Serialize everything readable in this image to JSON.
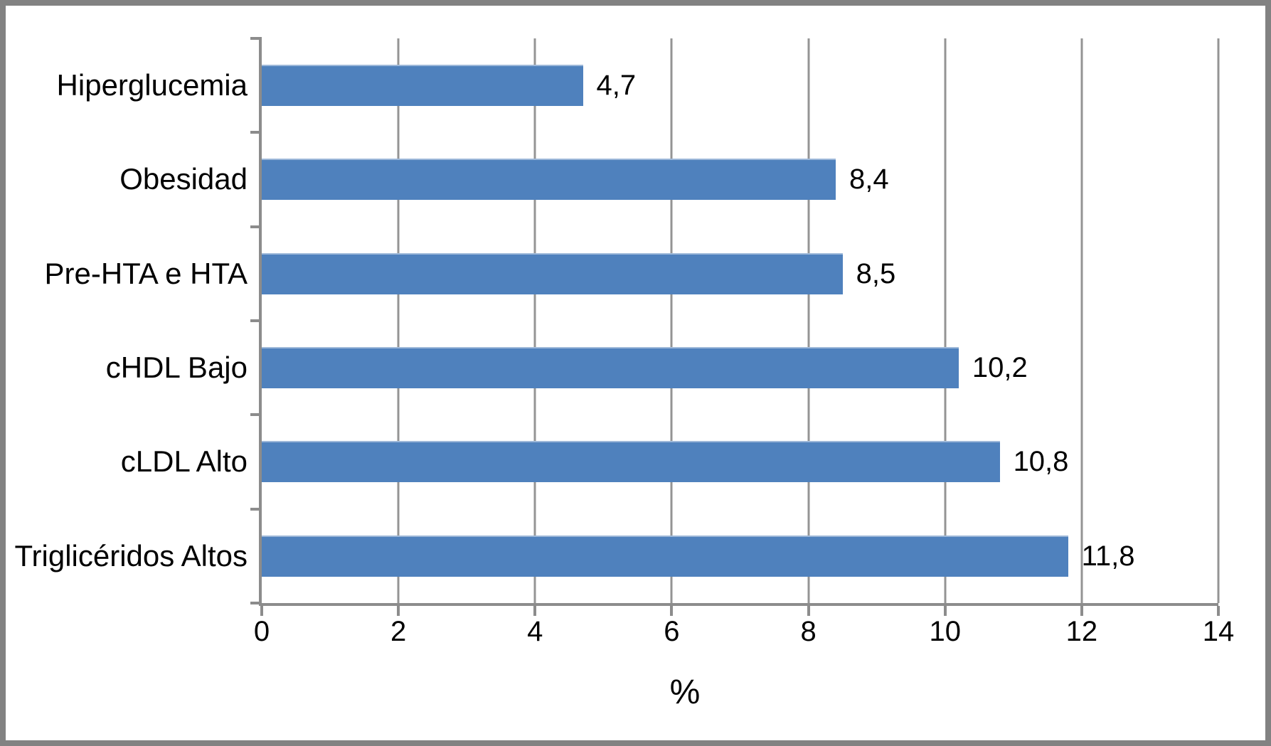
{
  "chart_data": {
    "type": "bar",
    "orientation": "horizontal",
    "title": "",
    "xlabel": "%",
    "ylabel": "",
    "categories": [
      "Hiperglucemia",
      "Obesidad",
      "Pre-HTA e HTA",
      "cHDL Bajo",
      "cLDL Alto",
      "Triglicéridos Altos"
    ],
    "values": [
      4.7,
      8.4,
      8.5,
      10.2,
      10.8,
      11.8
    ],
    "value_labels": [
      "4,7",
      "8,4",
      "8,5",
      "10,2",
      "10,8",
      "11,8"
    ],
    "xlim": [
      0,
      14
    ],
    "x_ticks": [
      0,
      2,
      4,
      6,
      8,
      10,
      12,
      14
    ],
    "x_tick_labels": [
      "0",
      "2",
      "4",
      "6",
      "8",
      "10",
      "12",
      "14"
    ],
    "grid": "vertical-gridlines-on",
    "legend": "none",
    "colors": {
      "bar_fill": "#4F81BD",
      "bar_top_edge": "#9DB8D9",
      "gridline": "#949494",
      "axis_line": "#8C8C8C",
      "frame_border": "#828282",
      "background": "#FFFFFF",
      "text": "#000000"
    }
  }
}
